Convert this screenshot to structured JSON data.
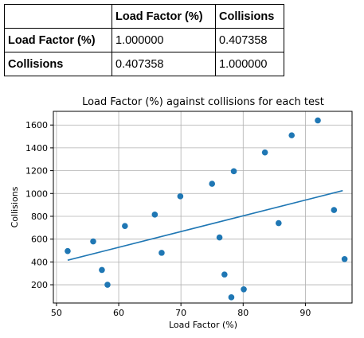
{
  "table": {
    "columns": [
      "Load Factor (%)",
      "Collisions"
    ],
    "rows": [
      {
        "label": "Load Factor (%)",
        "values": [
          "1.000000",
          "0.407358"
        ]
      },
      {
        "label": "Collisions",
        "values": [
          "0.407358",
          "1.000000"
        ]
      }
    ]
  },
  "chart_data": {
    "type": "scatter",
    "title": "Load Factor (%) against collisions for each test",
    "xlabel": "Load Factor (%)",
    "ylabel": "Collisions",
    "xlim": [
      49.5,
      97.5
    ],
    "ylim": [
      40,
      1720
    ],
    "xticks": [
      50,
      60,
      70,
      80,
      90
    ],
    "yticks": [
      200,
      400,
      600,
      800,
      1000,
      1200,
      1400,
      1600
    ],
    "grid": true,
    "point_color": "#1f77b4",
    "line_color": "#1f77b4",
    "points": [
      {
        "x": 51.8,
        "y": 495
      },
      {
        "x": 55.9,
        "y": 580
      },
      {
        "x": 57.3,
        "y": 330
      },
      {
        "x": 58.2,
        "y": 200
      },
      {
        "x": 61.0,
        "y": 715
      },
      {
        "x": 65.8,
        "y": 815
      },
      {
        "x": 66.9,
        "y": 480
      },
      {
        "x": 69.9,
        "y": 975
      },
      {
        "x": 75.0,
        "y": 1085
      },
      {
        "x": 76.2,
        "y": 615
      },
      {
        "x": 77.0,
        "y": 290
      },
      {
        "x": 78.1,
        "y": 90
      },
      {
        "x": 78.5,
        "y": 1195
      },
      {
        "x": 80.1,
        "y": 160
      },
      {
        "x": 83.5,
        "y": 1360
      },
      {
        "x": 85.7,
        "y": 740
      },
      {
        "x": 87.8,
        "y": 1510
      },
      {
        "x": 92.0,
        "y": 1640
      },
      {
        "x": 94.6,
        "y": 855
      },
      {
        "x": 96.3,
        "y": 425
      }
    ],
    "fit_line": [
      {
        "x": 51.8,
        "y": 415
      },
      {
        "x": 96.0,
        "y": 1025
      }
    ]
  }
}
